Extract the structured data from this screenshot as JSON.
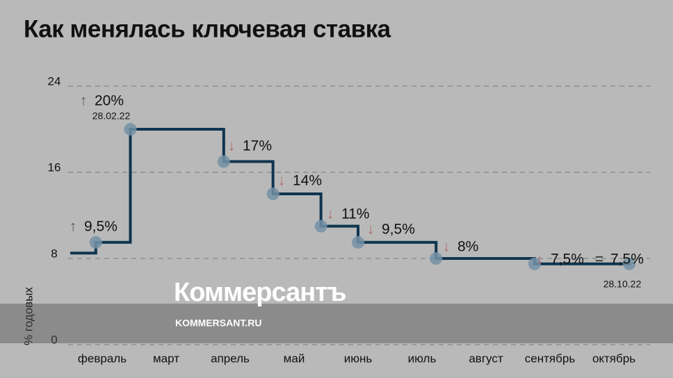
{
  "chart_data": {
    "type": "step",
    "title": "Как менялась ключевая ставка",
    "y_label": "% годовых",
    "xlim": [
      0,
      9
    ],
    "xticks": [
      {
        "value": 0.5,
        "label": "февраль"
      },
      {
        "value": 1.5,
        "label": "март"
      },
      {
        "value": 2.5,
        "label": "апрель"
      },
      {
        "value": 3.5,
        "label": "май"
      },
      {
        "value": 4.5,
        "label": "июнь"
      },
      {
        "value": 5.5,
        "label": "июль"
      },
      {
        "value": 6.5,
        "label": "август"
      },
      {
        "value": 7.5,
        "label": "сентябрь"
      },
      {
        "value": 8.5,
        "label": "октябрь"
      }
    ],
    "ylim": [
      0,
      24
    ],
    "yticks": [
      0,
      8,
      16,
      24
    ],
    "grid": true,
    "series": [
      {
        "color": "#0f3550",
        "marker_color": "#7391a6",
        "x": [
          0,
          0.4,
          0.94,
          2.4,
          3.17,
          3.92,
          4.5,
          5.72,
          7.26,
          8.74
        ],
        "values": [
          8.5,
          9.5,
          20,
          17,
          14,
          11,
          9.5,
          8,
          7.5,
          7.5
        ]
      }
    ],
    "annotations": [
      {
        "arrow": "↑",
        "text": "9,5%"
      },
      {
        "arrow": "↑",
        "text": "20%",
        "date": "28.02.22"
      },
      {
        "arrow": "↓",
        "text": "17%"
      },
      {
        "arrow": "↓",
        "text": "14%"
      },
      {
        "arrow": "↓",
        "text": "11%"
      },
      {
        "arrow": "↓",
        "text": "9,5%"
      },
      {
        "arrow": "↓",
        "text": "8%"
      },
      {
        "arrow": "↓",
        "text": "7,5%"
      },
      {
        "arrow": "=",
        "text": "7,5%",
        "date": "28.10.22"
      }
    ],
    "watermark": {
      "logo": "Коммерсантъ",
      "url": "KOMMERSANT.RU"
    }
  }
}
